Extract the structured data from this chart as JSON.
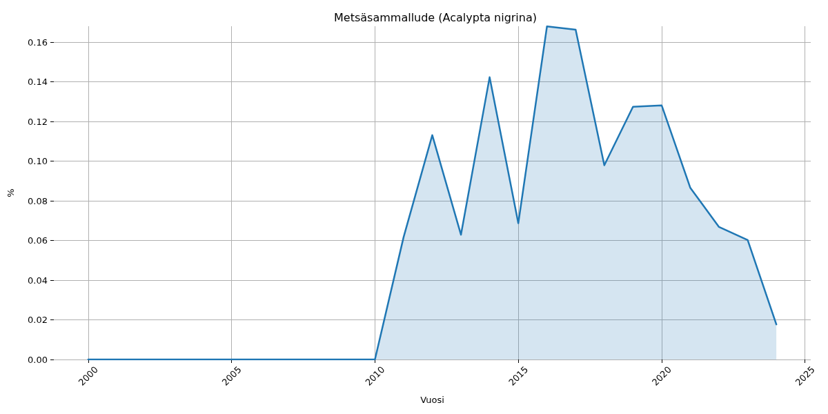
{
  "chart_data": {
    "type": "area",
    "title": "Metsäsammallude (Acalypta nigrina)",
    "xlabel": "Vuosi",
    "ylabel": "%",
    "x": [
      2000,
      2001,
      2002,
      2003,
      2004,
      2005,
      2006,
      2007,
      2008,
      2009,
      2010,
      2011,
      2012,
      2013,
      2014,
      2015,
      2016,
      2017,
      2018,
      2019,
      2020,
      2021,
      2022,
      2023,
      2024
    ],
    "series": [
      {
        "color": "#1f77b4",
        "values": [
          0,
          0,
          0,
          0,
          0,
          0,
          0,
          0,
          0,
          0,
          0,
          0.0617,
          0.1131,
          0.0629,
          0.1423,
          0.0687,
          0.1679,
          0.1663,
          0.0979,
          0.1274,
          0.1281,
          0.0865,
          0.0668,
          0.0602,
          0.0177
        ]
      }
    ],
    "xlim": [
      1998.8,
      2025.2
    ],
    "xticks": [
      2000,
      2005,
      2010,
      2015,
      2020,
      2025
    ],
    "ylim": [
      0,
      0.168
    ],
    "yticks": [
      {
        "value": 0,
        "label": "0.00"
      },
      0.02,
      0.04,
      0.06,
      0.08,
      {
        "value": 0.1,
        "label": "0.10"
      },
      0.12,
      0.14,
      0.16
    ],
    "grid": true
  }
}
